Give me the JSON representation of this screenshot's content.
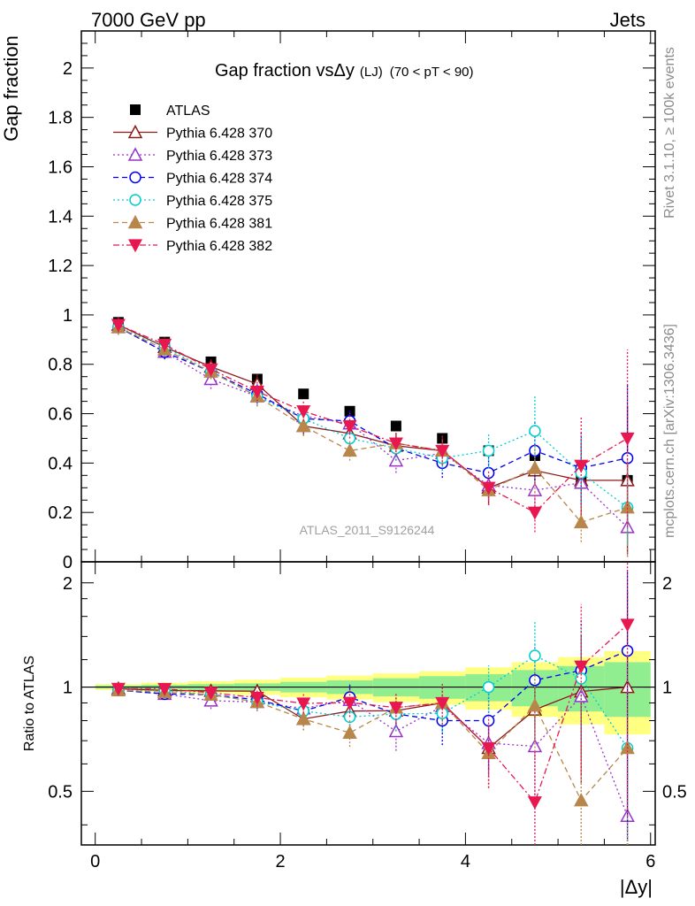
{
  "header": {
    "left": "7000 GeV pp",
    "right": "Jets"
  },
  "side_labels": {
    "rivet": "Rivet 3.1.10, ≥ 100k events",
    "mcplots": "mcplots.cern.ch [arXiv:1306.3436]"
  },
  "watermark": "ATLAS_2011_S9126244",
  "chart_data": {
    "type": "scatter",
    "title": "Gap fraction vsΔy (LJ)  (70 < pT <  90)",
    "title_parts": {
      "main": "Gap fraction vsΔy",
      "sub": "(LJ)",
      "range": "(70 < pT <  90)"
    },
    "xlabel": "|Δy|",
    "ylabel": "Gap fraction",
    "ratio_ylabel": "Ratio to ATLAS",
    "xlim": [
      -0.15,
      6.05
    ],
    "ylim": [
      0,
      2.15
    ],
    "ratio_ylim": [
      0.35,
      2.3
    ],
    "x_ticks": [
      "0",
      "2",
      "4",
      "6"
    ],
    "y_ticks": [
      "0",
      "0.2",
      "0.4",
      "0.6",
      "0.8",
      "1",
      "1.2",
      "1.4",
      "1.6",
      "1.8",
      "2"
    ],
    "ratio_ticks": [
      "0.5",
      "1",
      "2"
    ],
    "x": [
      0.25,
      0.75,
      1.25,
      1.75,
      2.25,
      2.75,
      3.25,
      3.75,
      4.25,
      4.75,
      5.25,
      5.75
    ],
    "band_inner": [
      0.01,
      0.015,
      0.02,
      0.025,
      0.035,
      0.045,
      0.06,
      0.075,
      0.09,
      0.12,
      0.15,
      0.18
    ],
    "band_outer": [
      0.02,
      0.03,
      0.04,
      0.05,
      0.065,
      0.08,
      0.095,
      0.11,
      0.14,
      0.18,
      0.22,
      0.27
    ],
    "legend_position": "top-left",
    "series": [
      {
        "name": "ATLAS",
        "color": "#000000",
        "marker": "square-filled",
        "dash": "none",
        "values": [
          0.97,
          0.89,
          0.81,
          0.74,
          0.68,
          0.61,
          0.55,
          0.5,
          0.45,
          0.43,
          0.34,
          0.33
        ],
        "errors": [
          0.01,
          0.015,
          0.015,
          0.015,
          0.015,
          0.015,
          0.015,
          0.015,
          0.015,
          0.02,
          0.02,
          0.02
        ]
      },
      {
        "name": "Pythia 6.428 370",
        "color": "#8b1a1a",
        "marker": "triangle-up-open",
        "dash": "solid",
        "values": [
          0.96,
          0.87,
          0.79,
          0.72,
          0.55,
          0.52,
          0.47,
          0.45,
          0.3,
          0.37,
          0.33,
          0.33
        ],
        "errors": [
          0.03,
          0.03,
          0.03,
          0.04,
          0.04,
          0.05,
          0.05,
          0.06,
          0.07,
          0.1,
          0.15,
          0.3
        ]
      },
      {
        "name": "Pythia 6.428 373",
        "color": "#9932cc",
        "marker": "triangle-up-open",
        "dash": "dotted",
        "values": [
          0.95,
          0.85,
          0.74,
          0.67,
          0.59,
          0.56,
          0.41,
          0.44,
          0.31,
          0.29,
          0.32,
          0.14
        ],
        "errors": [
          0.03,
          0.03,
          0.04,
          0.04,
          0.04,
          0.05,
          0.05,
          0.05,
          0.06,
          0.08,
          0.1,
          0.12
        ]
      },
      {
        "name": "Pythia 6.428 374",
        "color": "#0000ee",
        "marker": "circle-open",
        "dash": "dashed",
        "values": [
          0.95,
          0.85,
          0.77,
          0.68,
          0.58,
          0.57,
          0.46,
          0.4,
          0.36,
          0.45,
          0.38,
          0.42
        ],
        "errors": [
          0.03,
          0.03,
          0.03,
          0.04,
          0.04,
          0.05,
          0.05,
          0.06,
          0.1,
          0.12,
          0.15,
          0.3
        ]
      },
      {
        "name": "Pythia 6.428 375",
        "color": "#00cdcd",
        "marker": "circle-open",
        "dash": "dotted",
        "values": [
          0.95,
          0.87,
          0.77,
          0.67,
          0.58,
          0.5,
          0.46,
          0.42,
          0.45,
          0.53,
          0.36,
          0.22
        ],
        "errors": [
          0.03,
          0.03,
          0.03,
          0.04,
          0.04,
          0.04,
          0.05,
          0.05,
          0.07,
          0.14,
          0.15,
          0.15
        ]
      },
      {
        "name": "Pythia 6.428 381",
        "color": "#b8864b",
        "marker": "triangle-up-filled",
        "dash": "dashed",
        "values": [
          0.95,
          0.86,
          0.77,
          0.67,
          0.55,
          0.45,
          0.48,
          0.45,
          0.29,
          0.38,
          0.16,
          0.22
        ],
        "errors": [
          0.03,
          0.03,
          0.03,
          0.04,
          0.04,
          0.04,
          0.05,
          0.05,
          0.06,
          0.1,
          0.08,
          0.2
        ]
      },
      {
        "name": "Pythia 6.428 382",
        "color": "#e8174f",
        "marker": "triangle-down-filled",
        "dash": "dashdot",
        "values": [
          0.96,
          0.88,
          0.78,
          0.69,
          0.61,
          0.55,
          0.48,
          0.45,
          0.3,
          0.2,
          0.39,
          0.5
        ],
        "errors": [
          0.03,
          0.03,
          0.03,
          0.04,
          0.04,
          0.05,
          0.05,
          0.06,
          0.07,
          0.08,
          0.2,
          0.36
        ]
      }
    ]
  }
}
